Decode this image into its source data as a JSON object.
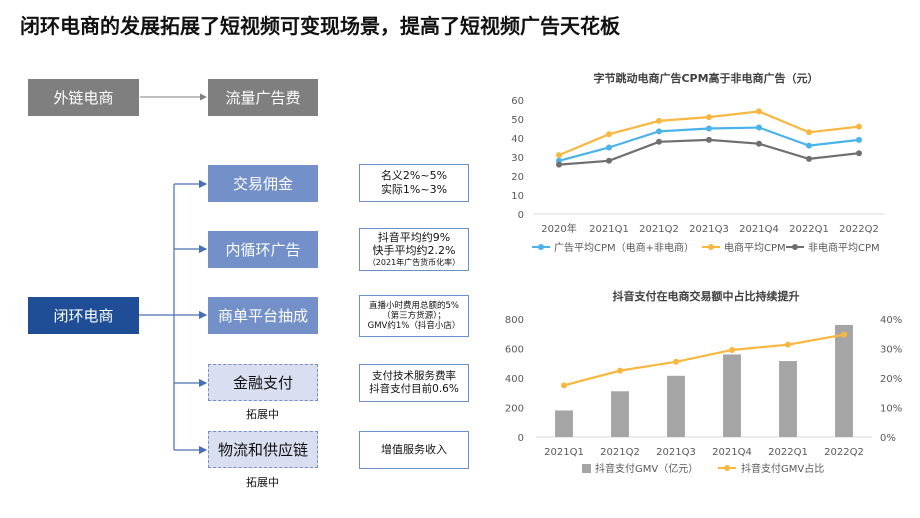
{
  "title": "闭环电商的发展拓展了短视频可变现场景，提高了短视频广告天花板",
  "diagram": {
    "external": "外链电商",
    "traffic_fee": "流量广告费",
    "closed_loop": "闭环电商",
    "branches": [
      {
        "label": "交易佣金",
        "style": "solid",
        "note": [
          "名义2%~5%",
          "实际1%~3%"
        ],
        "tag": ""
      },
      {
        "label": "内循环广告",
        "style": "solid",
        "note": [
          "抖音平均约9%",
          "快手平均约2.2%",
          "（2021年广告货币化率）"
        ],
        "tag": ""
      },
      {
        "label": "商单平台抽成",
        "style": "solid",
        "note": [
          "直播小时费用总额的5%",
          "（第三方货源）；",
          "GMV约1%（抖音小店）"
        ],
        "tag": ""
      },
      {
        "label": "金融支付",
        "style": "dashed",
        "note": [
          "支付技术服务费率",
          "抖音支付目前0.6%"
        ],
        "tag": "拓展中"
      },
      {
        "label": "物流和供应链",
        "style": "dashed",
        "note": [
          "增值服务收入"
        ],
        "tag": "拓展中"
      }
    ]
  },
  "chart_data": [
    {
      "type": "line",
      "title": "字节跳动电商广告CPM高于非电商广告（元）",
      "categories": [
        "2020年",
        "2021Q1",
        "2021Q2",
        "2021Q3",
        "2021Q4",
        "2022Q1",
        "2022Q2"
      ],
      "ylim": [
        0,
        60
      ],
      "yticks": [
        0,
        10,
        20,
        30,
        40,
        50,
        60
      ],
      "series": [
        {
          "name": "广告平均CPM（电商+非电商）",
          "color": "#4ab3ea",
          "values": [
            28,
            35,
            43.5,
            45,
            45.5,
            36,
            39
          ]
        },
        {
          "name": "电商平均CPM",
          "color": "#f9b741",
          "values": [
            31,
            42,
            49,
            51,
            54,
            43,
            46
          ]
        },
        {
          "name": "非电商平均CPM",
          "color": "#6f6f6f",
          "values": [
            26,
            28,
            38,
            39,
            37,
            29,
            32
          ]
        }
      ],
      "legend": "bottom"
    },
    {
      "type": "bar+line",
      "title": "抖音支付在电商交易额中占比持续提升",
      "categories": [
        "2021Q1",
        "2021Q2",
        "2021Q3",
        "2021Q4",
        "2022Q1",
        "2022Q2"
      ],
      "ylim": [
        0,
        800
      ],
      "yticks": [
        0,
        200,
        400,
        600,
        800
      ],
      "y2lim": [
        0,
        40
      ],
      "y2ticks": [
        "0%",
        "10%",
        "20%",
        "30%",
        "40%"
      ],
      "series": [
        {
          "name": "抖音支付GMV（亿元）",
          "type": "bar",
          "color": "#a5a5a5",
          "values": [
            180,
            310,
            415,
            560,
            515,
            760
          ]
        },
        {
          "name": "抖音支付GMV占比",
          "type": "line",
          "axis": "right",
          "color": "#f9b741",
          "values": [
            17.5,
            22.5,
            25.5,
            29.5,
            31.3,
            34.7
          ]
        }
      ],
      "legend": "bottom"
    }
  ]
}
